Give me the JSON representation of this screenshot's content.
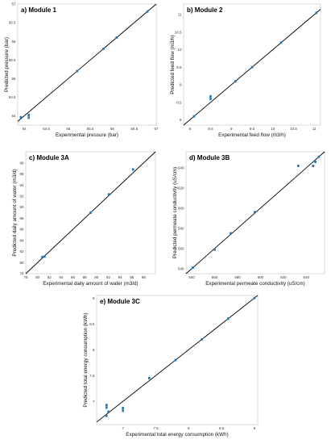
{
  "chart_data": [
    {
      "id": "p1",
      "title": "a) Module 1",
      "type": "scatter",
      "xlabel": "Experimental pressure (bar)",
      "ylabel": "Predicted pressure (bar)",
      "xlim": [
        53.85,
        57.0
      ],
      "ylim": [
        53.75,
        57.0
      ],
      "xticks": [
        54,
        54.5,
        55,
        55.5,
        56,
        56.5,
        57
      ],
      "yticks": [
        54,
        54.5,
        55,
        55.5,
        56,
        56.5,
        57
      ],
      "colors": {
        "points": "#1f77b4",
        "line": "#000000"
      },
      "series": [
        {
          "points": [
            [
              53.92,
              53.96
            ],
            [
              54.1,
              53.95
            ],
            [
              54.1,
              54.02
            ],
            [
              55.2,
              55.2
            ],
            [
              55.8,
              55.8
            ],
            [
              56.1,
              56.1
            ],
            [
              56.8,
              56.8
            ]
          ]
        }
      ]
    },
    {
      "id": "p2",
      "title": "b) Module 2",
      "type": "scatter",
      "xlabel": "Experimental feed flow (m3/h)",
      "ylabel": "Predicted feed flow (m3/h)",
      "xlim": [
        7.85,
        11.15
      ],
      "ylim": [
        7.85,
        11.3
      ],
      "xticks": [
        8,
        8.5,
        9,
        9.5,
        10,
        10.5,
        11
      ],
      "yticks": [
        8,
        8.5,
        9,
        9.5,
        10,
        10.5,
        11
      ],
      "colors": {
        "points": "#1f77b4",
        "line": "#000000"
      },
      "series": [
        {
          "points": [
            [
              8.1,
              8.1
            ],
            [
              8.5,
              8.6
            ],
            [
              8.5,
              8.67
            ],
            [
              9.1,
              9.1
            ],
            [
              9.5,
              9.5
            ],
            [
              10.2,
              10.2
            ],
            [
              11.05,
              11.05
            ]
          ]
        }
      ]
    },
    {
      "id": "p3",
      "title": "c) Module 3A",
      "type": "scatter",
      "xlabel": "Experimental daily amount of water (m3/d)",
      "ylabel": "Predicted daily amount of water (m3/d)",
      "xlim": [
        78,
        100
      ],
      "ylim": [
        78,
        100
      ],
      "xticks": [
        78,
        80,
        82,
        84,
        86,
        88,
        90,
        92,
        94,
        96,
        98
      ],
      "yticks": [
        78,
        80,
        82,
        84,
        86,
        88,
        90,
        92,
        94,
        96,
        98
      ],
      "colors": {
        "points": "#1f77b4",
        "line": "#000000"
      },
      "series": [
        {
          "points": [
            [
              80.8,
              81.0
            ],
            [
              81.2,
              81.1
            ],
            [
              89.0,
              89.0
            ],
            [
              92.1,
              92.3
            ],
            [
              96.2,
              96.8
            ]
          ]
        }
      ]
    },
    {
      "id": "p4",
      "title": "d) Module 3B",
      "type": "scatter",
      "xlabel": "Experimental permeate conductivity (uS/cm)",
      "ylabel": "Predicted permeate conductivity (uS/cm)",
      "xlim": [
        535,
        656
      ],
      "ylim": [
        535,
        656
      ],
      "xticks": [
        540,
        560,
        580,
        600,
        620,
        640
      ],
      "yticks": [
        540,
        560,
        580,
        600,
        620,
        640
      ],
      "colors": {
        "points": "#1f77b4",
        "line": "#000000"
      },
      "series": [
        {
          "points": [
            [
              541,
              541
            ],
            [
              560,
              559
            ],
            [
              574,
              575
            ],
            [
              595,
              596
            ],
            [
              633,
              642
            ],
            [
              646,
              642
            ],
            [
              648,
              646
            ],
            [
              651,
              651
            ]
          ]
        }
      ]
    },
    {
      "id": "p5",
      "title": "e) Module 3C",
      "type": "scatter",
      "xlabel": "Experimental total energy consumption (kWh)",
      "ylabel": "Predicted total energy consumption (kWh)",
      "xlim": [
        6.6,
        9.05
      ],
      "ylim": [
        6.55,
        9.05
      ],
      "xticks": [
        7,
        7.5,
        8,
        8.5,
        9
      ],
      "yticks": [
        7,
        7.5,
        8,
        8.5,
        9
      ],
      "colors": {
        "points": "#1f77b4",
        "line": "#000000"
      },
      "series": [
        {
          "points": [
            [
              6.75,
              6.72
            ],
            [
              6.78,
              6.8
            ],
            [
              6.75,
              6.88
            ],
            [
              6.75,
              6.93
            ],
            [
              7.0,
              6.82
            ],
            [
              7.0,
              6.87
            ],
            [
              7.4,
              7.45
            ],
            [
              7.8,
              7.8
            ],
            [
              8.2,
              8.2
            ],
            [
              8.6,
              8.6
            ],
            [
              9.0,
              9.0
            ]
          ]
        }
      ]
    }
  ]
}
